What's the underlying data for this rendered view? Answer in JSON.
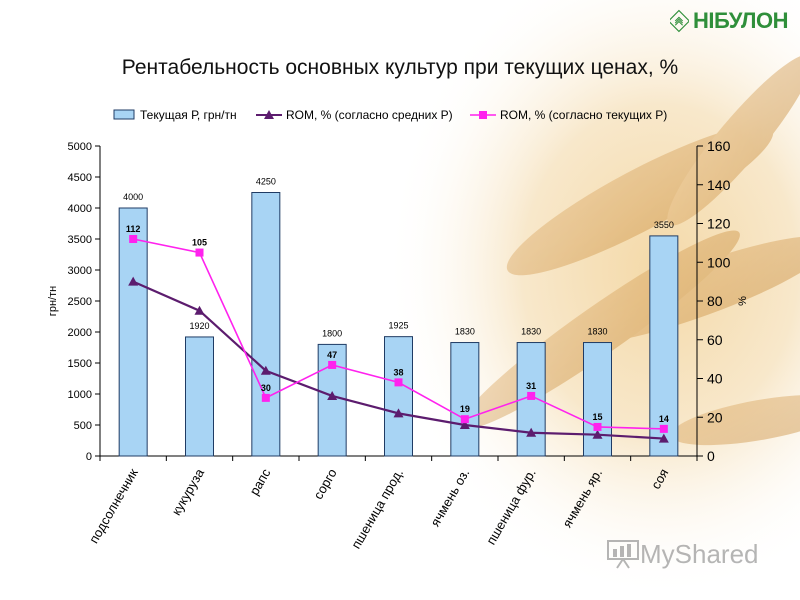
{
  "header": {
    "logo_text": "НІБУЛОН",
    "title": "Рентабельность основных культур при текущих ценах, %"
  },
  "watermark": {
    "text": "MyShared"
  },
  "colors": {
    "bar_fill": "#a8d4f4",
    "bar_stroke": "#1f3b64",
    "avg_line": "#5c1c6e",
    "cur_line": "#ff22ee",
    "logo_green": "#2f8f3a"
  },
  "chart_data": {
    "type": "bar",
    "categories": [
      "подсолнечник",
      "кукуруза",
      "рапс",
      "сорго",
      "пшеница прод.",
      "ячмень оз.",
      "пшеница фур.",
      "ячмень яр.",
      "соя"
    ],
    "y_left": {
      "label": "грн/тн",
      "ylim": [
        0,
        5000
      ],
      "ticks": [
        0,
        500,
        1000,
        1500,
        2000,
        2500,
        3000,
        3500,
        4000,
        4500,
        5000
      ]
    },
    "y_right": {
      "label": "%",
      "ylim": [
        0,
        160
      ],
      "ticks": [
        0,
        20,
        40,
        60,
        80,
        100,
        120,
        140,
        160
      ]
    },
    "legend_position": "top",
    "series": [
      {
        "name": "Текущая Р, грн/тн",
        "kind": "bar",
        "axis": "left",
        "values": [
          4000,
          1920,
          4250,
          1800,
          1925,
          1830,
          1830,
          1830,
          3550
        ],
        "labels": [
          "4000",
          "1920",
          "4250",
          "1800",
          "1925",
          "1830",
          "1830",
          "1830",
          "3550"
        ]
      },
      {
        "name": "ROM, % (согласно средних Р)",
        "kind": "line",
        "axis": "right",
        "values": [
          90,
          75,
          44,
          31,
          22,
          16,
          12,
          11,
          9
        ]
      },
      {
        "name": "ROM, % (согласно текущих Р)",
        "kind": "line",
        "axis": "right",
        "values": [
          112,
          105,
          30,
          47,
          38,
          19,
          31,
          15,
          14
        ],
        "labels": [
          "112",
          "105",
          "30",
          "47",
          "38",
          "19",
          "31",
          "15",
          "14"
        ]
      }
    ]
  }
}
